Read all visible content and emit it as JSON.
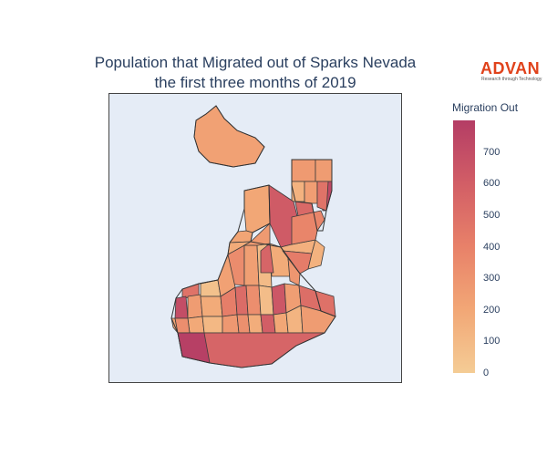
{
  "title_line1": "Population that Migrated out of Sparks Nevada",
  "title_line2": "the first three months of 2019",
  "logo": {
    "word": "ADVAN",
    "tagline": "Research through Technology",
    "color": "#e0421b"
  },
  "map_background": "#e5ecf6",
  "colorbar": {
    "title": "Migration Out",
    "min": 0,
    "max": 800,
    "ticks": [
      "0",
      "100",
      "200",
      "300",
      "400",
      "500",
      "600",
      "700"
    ],
    "colors": [
      "#f4cc95",
      "#f2a776",
      "#e88169",
      "#d25e66",
      "#b43d65"
    ]
  },
  "regions": [
    {
      "value": 230
    },
    {
      "value": 270
    },
    {
      "value": 260
    },
    {
      "value": 140
    },
    {
      "value": 250
    },
    {
      "value": 730
    },
    {
      "value": 480
    },
    {
      "value": 540
    },
    {
      "value": 200
    },
    {
      "value": 210
    },
    {
      "value": 620
    },
    {
      "value": 150
    },
    {
      "value": 380
    },
    {
      "value": 340
    },
    {
      "value": 240
    },
    {
      "value": 90
    },
    {
      "value": 180
    },
    {
      "value": 560
    },
    {
      "value": 230
    },
    {
      "value": 290
    },
    {
      "value": 480
    },
    {
      "value": 700
    },
    {
      "value": 260
    },
    {
      "value": 60
    },
    {
      "value": 180
    },
    {
      "value": 420
    },
    {
      "value": 520
    },
    {
      "value": 330
    },
    {
      "value": 80
    },
    {
      "value": 640
    },
    {
      "value": 250
    },
    {
      "value": 510
    },
    {
      "value": 190
    },
    {
      "value": 110
    },
    {
      "value": 280
    },
    {
      "value": 320
    },
    {
      "value": 170
    },
    {
      "value": 600
    },
    {
      "value": 200
    },
    {
      "value": 130
    },
    {
      "value": 260
    },
    {
      "value": 490
    },
    {
      "value": 230
    },
    {
      "value": 150
    },
    {
      "value": 430
    },
    {
      "value": 210
    },
    {
      "value": 330
    },
    {
      "value": 180
    },
    {
      "value": 270
    },
    {
      "value": 140
    },
    {
      "value": 560
    },
    {
      "value": 780
    }
  ]
}
